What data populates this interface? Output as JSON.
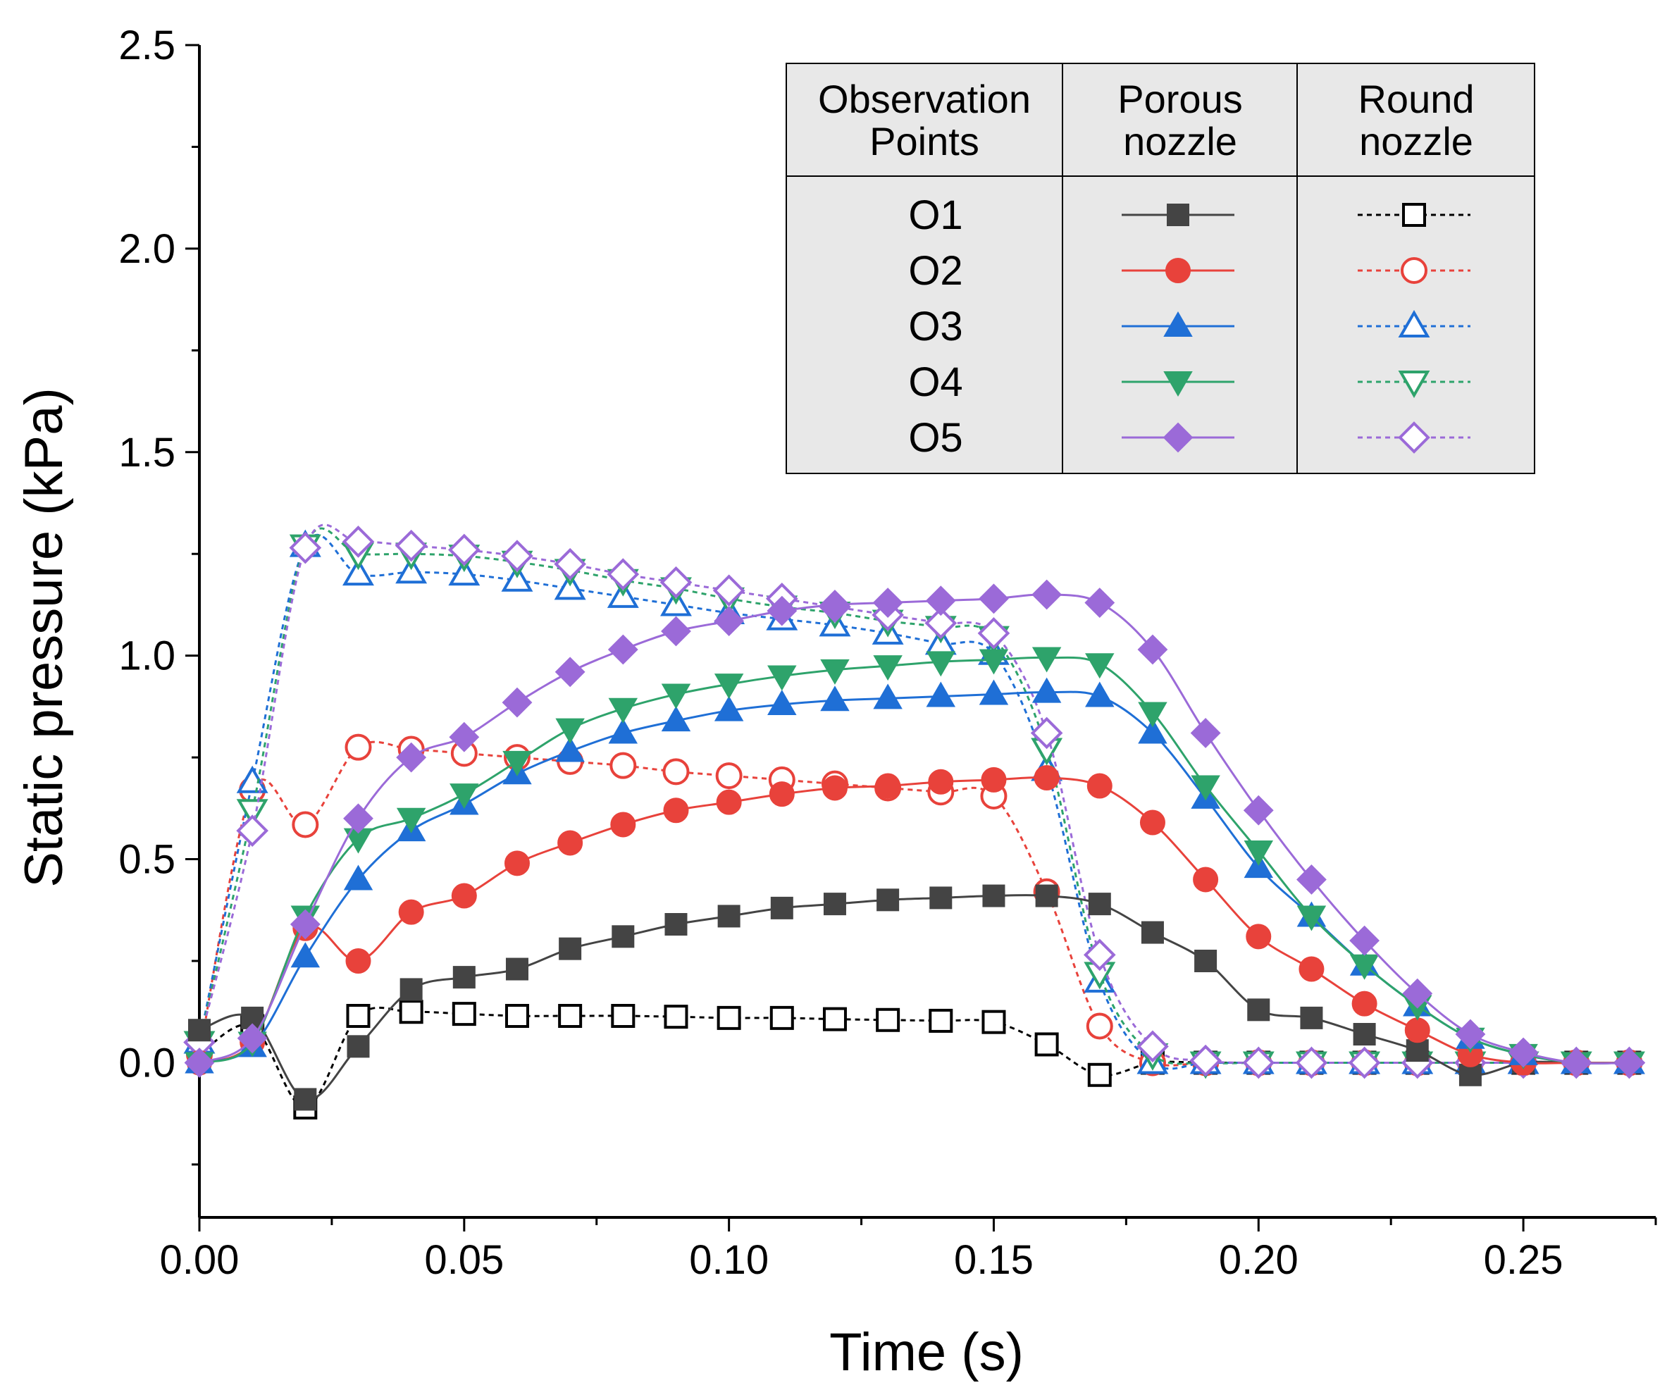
{
  "chart_data": {
    "type": "line",
    "title": "",
    "xlabel": "Time (s)",
    "ylabel": "Static pressure (kPa)",
    "xlim": [
      0,
      0.275
    ],
    "ylim": [
      -0.38,
      2.5
    ],
    "x_ticks": [
      "0.00",
      "0.05",
      "0.10",
      "0.15",
      "0.20",
      "0.25"
    ],
    "x_tick_values": [
      0,
      0.05,
      0.1,
      0.15,
      0.2,
      0.25
    ],
    "y_ticks": [
      "0.0",
      "0.5",
      "1.0",
      "1.5",
      "2.0",
      "2.5"
    ],
    "y_tick_values": [
      0,
      0.5,
      1.0,
      1.5,
      2.0,
      2.5
    ],
    "legend": {
      "placement": "top-right",
      "headers": [
        "Observation Points",
        "Porous nozzle",
        "Round nozzle"
      ],
      "rows": [
        "O1",
        "O2",
        "O3",
        "O4",
        "O5"
      ]
    },
    "x": [
      0,
      0.01,
      0.02,
      0.03,
      0.04,
      0.05,
      0.06,
      0.07,
      0.08,
      0.09,
      0.1,
      0.11,
      0.12,
      0.13,
      0.14,
      0.15,
      0.16,
      0.17,
      0.18,
      0.19,
      0.2,
      0.21,
      0.22,
      0.23,
      0.24,
      0.25,
      0.26,
      0.27
    ],
    "series": [
      {
        "name": "O1",
        "group": "Porous nozzle",
        "color": "#444444",
        "marker": "square",
        "filled": true,
        "dashed": false,
        "values": [
          0.08,
          0.11,
          -0.09,
          0.04,
          0.18,
          0.21,
          0.23,
          0.28,
          0.31,
          0.34,
          0.36,
          0.38,
          0.39,
          0.4,
          0.405,
          0.41,
          0.41,
          0.39,
          0.32,
          0.25,
          0.13,
          0.11,
          0.07,
          0.03,
          -0.03,
          0.0,
          0.0,
          0.0
        ]
      },
      {
        "name": "O2",
        "group": "Porous nozzle",
        "color": "#e8423b",
        "marker": "circle",
        "filled": true,
        "dashed": false,
        "values": [
          0.0,
          0.05,
          0.33,
          0.25,
          0.37,
          0.41,
          0.49,
          0.54,
          0.585,
          0.62,
          0.64,
          0.66,
          0.675,
          0.68,
          0.69,
          0.695,
          0.7,
          0.68,
          0.59,
          0.45,
          0.31,
          0.23,
          0.145,
          0.08,
          0.02,
          0.0,
          0.0,
          0.0
        ]
      },
      {
        "name": "O3",
        "group": "Porous nozzle",
        "color": "#1f6fd6",
        "marker": "triangle-up",
        "filled": true,
        "dashed": false,
        "values": [
          0.0,
          0.04,
          0.26,
          0.45,
          0.57,
          0.635,
          0.71,
          0.765,
          0.81,
          0.84,
          0.865,
          0.88,
          0.89,
          0.895,
          0.9,
          0.905,
          0.91,
          0.9,
          0.81,
          0.65,
          0.48,
          0.36,
          0.24,
          0.14,
          0.06,
          0.02,
          0.0,
          0.0
        ]
      },
      {
        "name": "O4",
        "group": "Porous nozzle",
        "color": "#2ea36b",
        "marker": "triangle-down",
        "filled": true,
        "dashed": false,
        "values": [
          0.0,
          0.05,
          0.36,
          0.55,
          0.6,
          0.66,
          0.74,
          0.82,
          0.87,
          0.905,
          0.93,
          0.95,
          0.965,
          0.975,
          0.985,
          0.99,
          0.995,
          0.98,
          0.86,
          0.68,
          0.52,
          0.36,
          0.24,
          0.14,
          0.06,
          0.02,
          0.0,
          0.0
        ]
      },
      {
        "name": "O5",
        "group": "Porous nozzle",
        "color": "#9b6ad8",
        "marker": "diamond",
        "filled": true,
        "dashed": false,
        "values": [
          0.0,
          0.06,
          0.34,
          0.6,
          0.75,
          0.8,
          0.885,
          0.96,
          1.015,
          1.06,
          1.085,
          1.11,
          1.125,
          1.13,
          1.135,
          1.14,
          1.15,
          1.13,
          1.015,
          0.81,
          0.62,
          0.45,
          0.3,
          0.17,
          0.07,
          0.025,
          0.0,
          0.0
        ]
      },
      {
        "name": "O1",
        "group": "Round nozzle",
        "color": "#000000",
        "marker": "square",
        "filled": false,
        "dashed": true,
        "values": [
          0.02,
          0.09,
          -0.11,
          0.115,
          0.125,
          0.12,
          0.115,
          0.115,
          0.115,
          0.113,
          0.11,
          0.11,
          0.107,
          0.105,
          0.103,
          0.1,
          0.045,
          -0.03,
          0.0,
          0.0,
          0.0,
          0.0,
          0.0,
          0.0,
          0.0,
          0.0,
          0.0,
          0.0
        ]
      },
      {
        "name": "O2",
        "group": "Round nozzle",
        "color": "#e8423b",
        "marker": "circle",
        "filled": false,
        "dashed": true,
        "values": [
          0.02,
          0.67,
          0.585,
          0.775,
          0.77,
          0.76,
          0.75,
          0.74,
          0.73,
          0.715,
          0.705,
          0.695,
          0.685,
          0.675,
          0.665,
          0.655,
          0.42,
          0.09,
          0.0,
          0.0,
          0.0,
          0.0,
          0.0,
          0.0,
          0.0,
          0.0,
          0.0,
          0.0
        ]
      },
      {
        "name": "O3",
        "group": "Round nozzle",
        "color": "#1f6fd6",
        "marker": "triangle-up",
        "filled": false,
        "dashed": true,
        "values": [
          0.05,
          0.69,
          1.27,
          1.2,
          1.205,
          1.2,
          1.185,
          1.165,
          1.145,
          1.125,
          1.105,
          1.09,
          1.075,
          1.055,
          1.03,
          1.005,
          0.72,
          0.2,
          0.0,
          0.0,
          0.0,
          0.0,
          0.0,
          0.0,
          0.0,
          0.0,
          0.0,
          0.0
        ]
      },
      {
        "name": "O4",
        "group": "Round nozzle",
        "color": "#2ea36b",
        "marker": "triangle-down",
        "filled": false,
        "dashed": true,
        "values": [
          0.05,
          0.62,
          1.27,
          1.25,
          1.25,
          1.245,
          1.23,
          1.21,
          1.185,
          1.165,
          1.14,
          1.12,
          1.105,
          1.085,
          1.07,
          1.045,
          0.77,
          0.22,
          0.02,
          0.0,
          0.0,
          0.0,
          0.0,
          0.0,
          0.0,
          0.0,
          0.0,
          0.0
        ]
      },
      {
        "name": "O5",
        "group": "Round nozzle",
        "color": "#9b6ad8",
        "marker": "diamond",
        "filled": false,
        "dashed": true,
        "values": [
          0.05,
          0.57,
          1.265,
          1.28,
          1.27,
          1.26,
          1.245,
          1.225,
          1.2,
          1.18,
          1.16,
          1.14,
          1.12,
          1.1,
          1.08,
          1.055,
          0.81,
          0.265,
          0.04,
          0.005,
          0.0,
          0.0,
          0.0,
          0.0,
          0.0,
          0.0,
          0.0,
          0.0
        ]
      }
    ]
  }
}
